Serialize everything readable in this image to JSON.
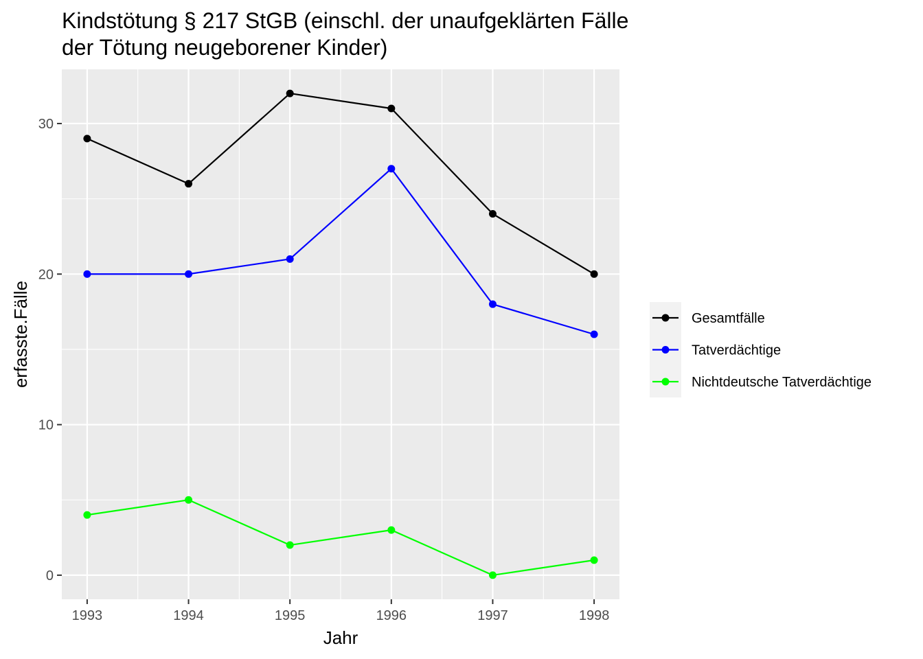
{
  "chart_data": {
    "type": "line",
    "title": [
      "Kindstötung § 217 StGB (einschl. der unaufgeklärten Fälle",
      "der Tötung neugeborener Kinder)"
    ],
    "xlabel": "Jahr",
    "ylabel": "erfasste.Fälle",
    "x": [
      1993,
      1994,
      1995,
      1996,
      1997,
      1998
    ],
    "x_tick_labels": [
      "1993",
      "1994",
      "1995",
      "1996",
      "1997",
      "1998"
    ],
    "y_ticks": [
      0,
      10,
      20,
      30
    ],
    "y_tick_labels": [
      "0",
      "10",
      "20",
      "30"
    ],
    "xlim": [
      1992.75,
      1998.25
    ],
    "ylim": [
      -1.6,
      33.6
    ],
    "grid": true,
    "legend_position": "right",
    "series": [
      {
        "name": "Gesamtfälle",
        "color": "#000000",
        "values": [
          29,
          26,
          32,
          31,
          24,
          20
        ]
      },
      {
        "name": "Tatverdächtige",
        "color": "#0000FF",
        "values": [
          20,
          20,
          21,
          27,
          18,
          16
        ]
      },
      {
        "name": "Nichtdeutsche Tatverdächtige",
        "color": "#00FF00",
        "values": [
          4,
          5,
          2,
          3,
          0,
          1
        ]
      }
    ]
  }
}
